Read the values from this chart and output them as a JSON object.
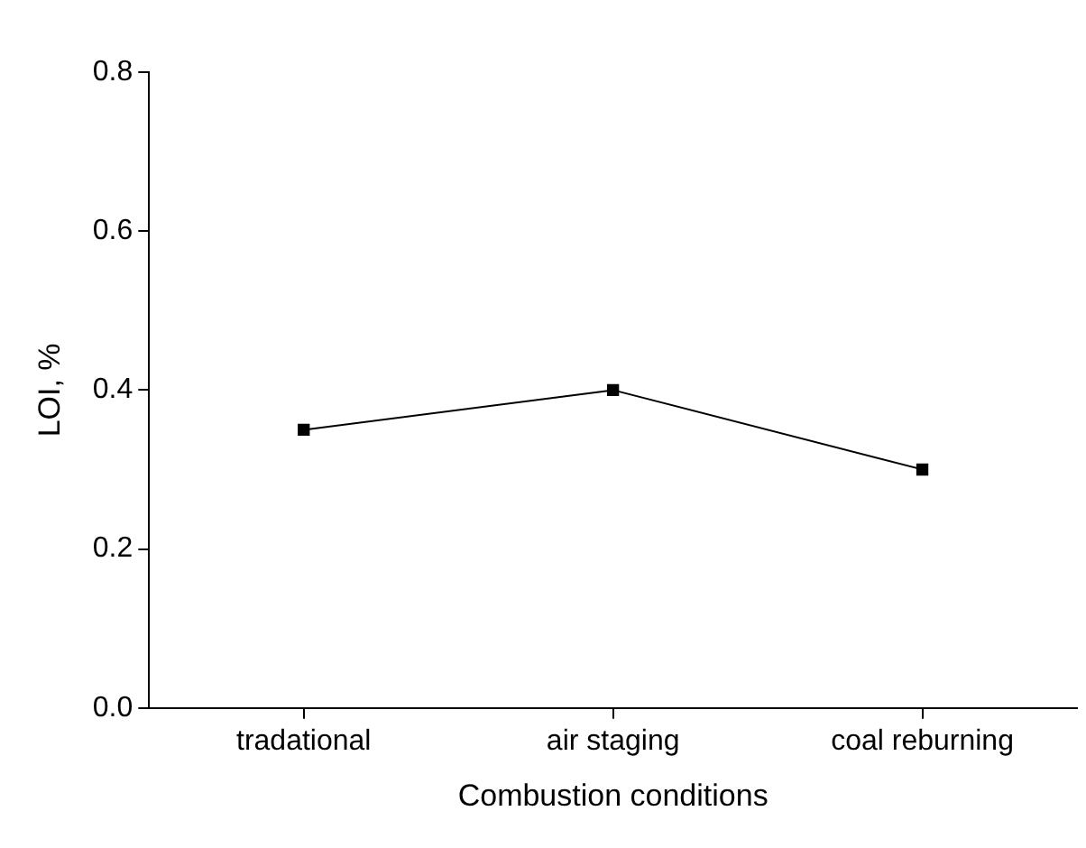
{
  "chart_data": {
    "type": "line",
    "xlabel": "Combustion conditions",
    "ylabel": "LOI, %",
    "categories": [
      "tradational",
      "air staging",
      "coal reburning"
    ],
    "series": [
      {
        "color": "#000000",
        "values": [
          0.35,
          0.4,
          0.3
        ]
      }
    ],
    "ylim": [
      0,
      0.8
    ],
    "yticks": [
      {
        "value": 0,
        "label": "0.0"
      },
      {
        "value": 0.2,
        "label": "0.2"
      },
      {
        "value": 0.4,
        "label": "0.4"
      },
      {
        "value": 0.6,
        "label": "0.6"
      },
      {
        "value": 0.8,
        "label": "0.8"
      }
    ],
    "marker": "square",
    "line_style": "solid",
    "grid": false,
    "legend": false
  }
}
